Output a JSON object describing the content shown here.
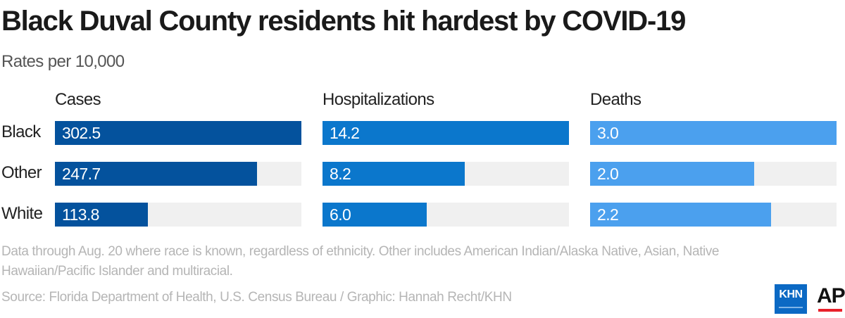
{
  "title": "Black Duval County residents hit hardest by COVID-19",
  "subtitle": "Rates per 10,000",
  "note": "Data through Aug. 20 where race is known, regardless of ethnicity. Other includes American Indian/Alaska Native, Asian, Native Hawaiian/Pacific Islander and multiracial.",
  "source": "Source: Florida Department of Health, U.S. Census Bureau / Graphic: Hannah Recht/KHN",
  "logos": {
    "khn": "KHN",
    "ap": "AP"
  },
  "colors": {
    "cases": "#04529d",
    "hospitalizations": "#0b77cc",
    "deaths": "#4ba0ee",
    "track": "#f0f0f0"
  },
  "chart_data": {
    "type": "bar",
    "title": "Black Duval County residents hit hardest by COVID-19",
    "subtitle": "Rates per 10,000",
    "categories": [
      "Black",
      "Other",
      "White"
    ],
    "series": [
      {
        "name": "Cases",
        "values": [
          302.5,
          247.7,
          113.8
        ],
        "labels": [
          "302.5",
          "247.7",
          "113.8"
        ],
        "max": 302.5
      },
      {
        "name": "Hospitalizations",
        "values": [
          14.2,
          8.2,
          6.0
        ],
        "labels": [
          "14.2",
          "8.2",
          "6.0"
        ],
        "max": 14.2
      },
      {
        "name": "Deaths",
        "values": [
          3.0,
          2.0,
          2.2
        ],
        "labels": [
          "3.0",
          "2.0",
          "2.2"
        ],
        "max": 3.0
      }
    ]
  }
}
